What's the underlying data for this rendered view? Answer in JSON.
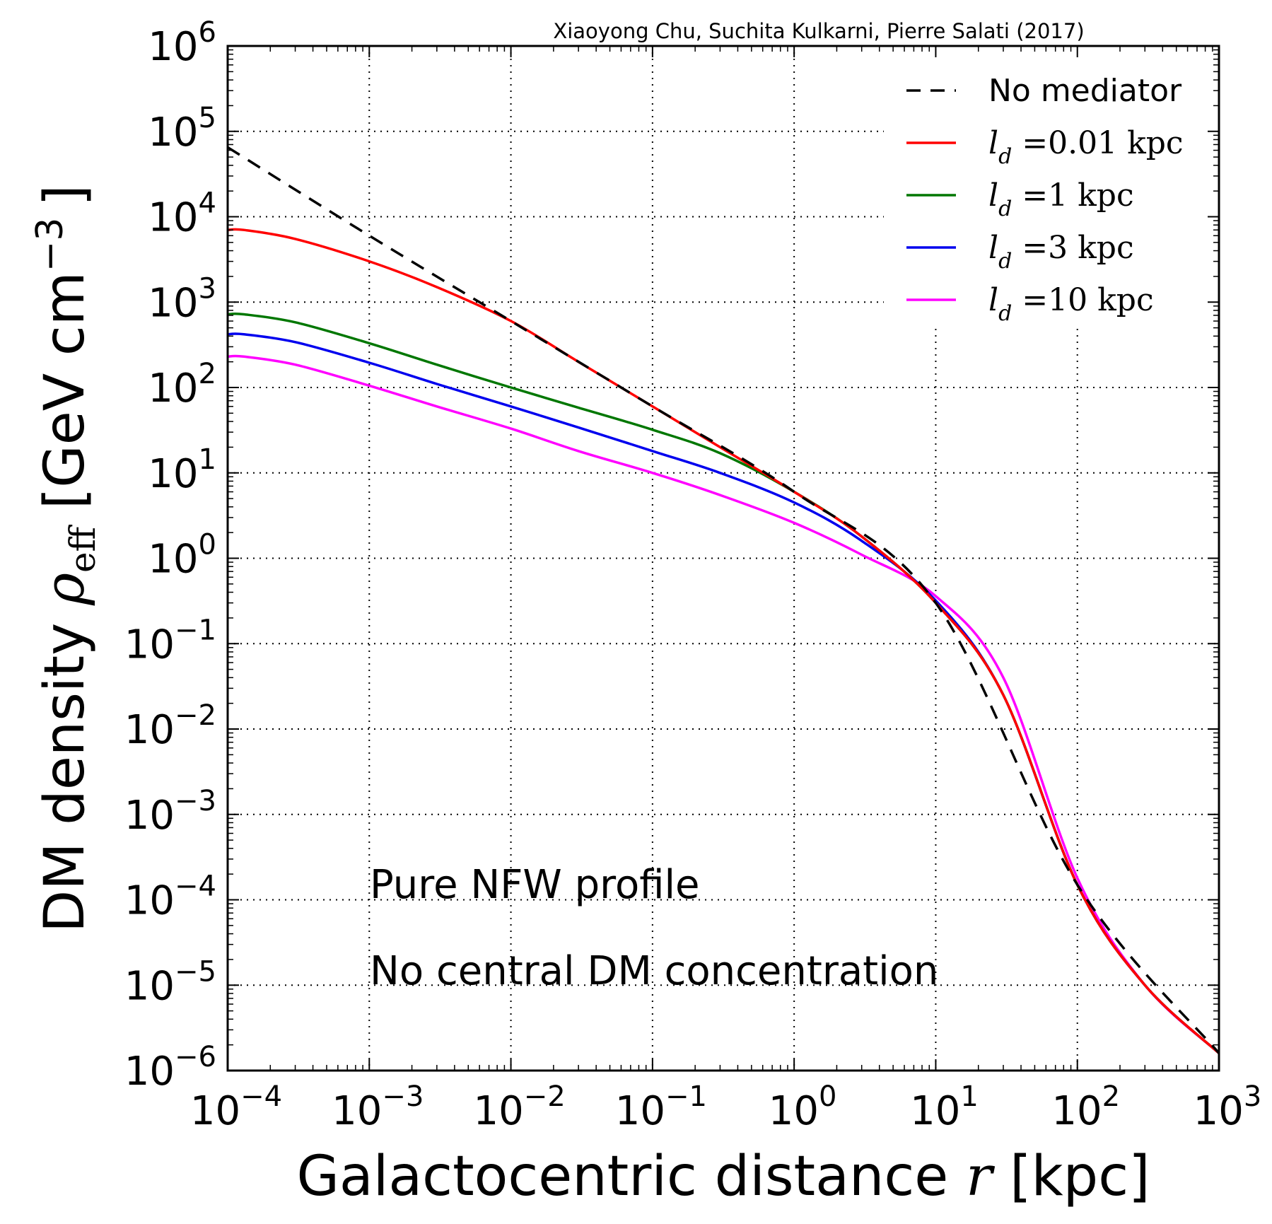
{
  "chart_data": {
    "type": "line",
    "credit": "Xiaoyong Chu, Suchita Kulkarni, Pierre Salati (2017)",
    "xlabel": {
      "text": "Galactocentric distance ",
      "var": "r",
      "unit": " [kpc]"
    },
    "ylabel": {
      "text": "DM density ",
      "var": "ρ",
      "sub": "eff",
      "unit_pre": " [GeV cm",
      "unit_sup": "−3",
      "unit_post": "]"
    },
    "xscale": "log",
    "yscale": "log",
    "xlim": [
      0.0001,
      1000
    ],
    "ylim": [
      1e-06,
      1000000
    ],
    "grid": true,
    "x_ticks": [
      {
        "value": 0.0001,
        "base": "10",
        "exp": "−4"
      },
      {
        "value": 0.001,
        "base": "10",
        "exp": "−3"
      },
      {
        "value": 0.01,
        "base": "10",
        "exp": "−2"
      },
      {
        "value": 0.1,
        "base": "10",
        "exp": "−1"
      },
      {
        "value": 1,
        "base": "10",
        "exp": "0"
      },
      {
        "value": 10,
        "base": "10",
        "exp": "1"
      },
      {
        "value": 100,
        "base": "10",
        "exp": "2"
      },
      {
        "value": 1000,
        "base": "10",
        "exp": "3"
      }
    ],
    "y_ticks": [
      {
        "value": 1e-06,
        "base": "10",
        "exp": "−6"
      },
      {
        "value": 1e-05,
        "base": "10",
        "exp": "−5"
      },
      {
        "value": 0.0001,
        "base": "10",
        "exp": "−4"
      },
      {
        "value": 0.001,
        "base": "10",
        "exp": "−3"
      },
      {
        "value": 0.01,
        "base": "10",
        "exp": "−2"
      },
      {
        "value": 0.1,
        "base": "10",
        "exp": "−1"
      },
      {
        "value": 1,
        "base": "10",
        "exp": "0"
      },
      {
        "value": 10,
        "base": "10",
        "exp": "1"
      },
      {
        "value": 100,
        "base": "10",
        "exp": "2"
      },
      {
        "value": 1000,
        "base": "10",
        "exp": "3"
      },
      {
        "value": 10000,
        "base": "10",
        "exp": "4"
      },
      {
        "value": 100000,
        "base": "10",
        "exp": "5"
      },
      {
        "value": 1000000,
        "base": "10",
        "exp": "6"
      }
    ],
    "annotations": [
      "Pure NFW profile",
      "No central DM concentration"
    ],
    "legend_position": "top-right",
    "series": [
      {
        "name": "No mediator",
        "legend_plain": "No mediator",
        "color": "#000000",
        "dash": true,
        "x": [
          0.0001,
          0.001,
          0.01,
          0.1,
          1,
          10,
          100,
          1000
        ],
        "y": [
          65000,
          6000,
          600,
          60,
          6,
          0.3,
          0.00015,
          1.6e-06
        ]
      },
      {
        "name": "ld=0.01 kpc",
        "legend_var": "l",
        "legend_sub": "d",
        "legend_rest": " =0.01 kpc",
        "color": "#ff0000",
        "dash": false,
        "x": [
          0.0001,
          0.00013,
          0.0003,
          0.001,
          0.003,
          0.01,
          0.03,
          0.1,
          0.3,
          1,
          3,
          10,
          30,
          100,
          300,
          1000
        ],
        "y": [
          7000,
          7000,
          5500,
          3000,
          1500,
          600,
          200,
          60,
          20,
          6,
          1.8,
          0.3,
          0.025,
          0.00015,
          1e-05,
          1.6e-06
        ]
      },
      {
        "name": "ld=1 kpc",
        "legend_var": "l",
        "legend_sub": "d",
        "legend_rest": " =1 kpc",
        "color": "#007700",
        "dash": false,
        "x": [
          0.0001,
          0.00013,
          0.0003,
          0.001,
          0.003,
          0.01,
          0.03,
          0.1,
          0.3,
          1,
          3,
          10,
          30,
          100,
          300,
          1000
        ],
        "y": [
          720,
          720,
          580,
          330,
          185,
          100,
          58,
          32,
          17,
          6,
          1.8,
          0.3,
          0.025,
          0.00015,
          1e-05,
          1.6e-06
        ]
      },
      {
        "name": "ld=3 kpc",
        "legend_var": "l",
        "legend_sub": "d",
        "legend_rest": " =3 kpc",
        "color": "#0000ee",
        "dash": false,
        "x": [
          0.0001,
          0.00013,
          0.0003,
          0.001,
          0.003,
          0.01,
          0.03,
          0.1,
          0.3,
          1,
          3,
          10,
          30,
          100,
          300,
          1000
        ],
        "y": [
          420,
          420,
          340,
          195,
          110,
          60,
          34,
          18,
          10,
          4.5,
          1.6,
          0.32,
          0.025,
          0.00015,
          1e-05,
          1.6e-06
        ]
      },
      {
        "name": "ld=10 kpc",
        "legend_var": "l",
        "legend_sub": "d",
        "legend_rest": " =10 kpc",
        "color": "#ff00ff",
        "dash": false,
        "x": [
          0.0001,
          0.00013,
          0.0003,
          0.001,
          0.003,
          0.01,
          0.03,
          0.1,
          0.3,
          1,
          3,
          10,
          30,
          100,
          300,
          1000
        ],
        "y": [
          230,
          230,
          185,
          105,
          60,
          33,
          18,
          10,
          5.5,
          2.6,
          1.1,
          0.36,
          0.04,
          0.00018,
          1e-05,
          1.6e-06
        ]
      }
    ]
  }
}
